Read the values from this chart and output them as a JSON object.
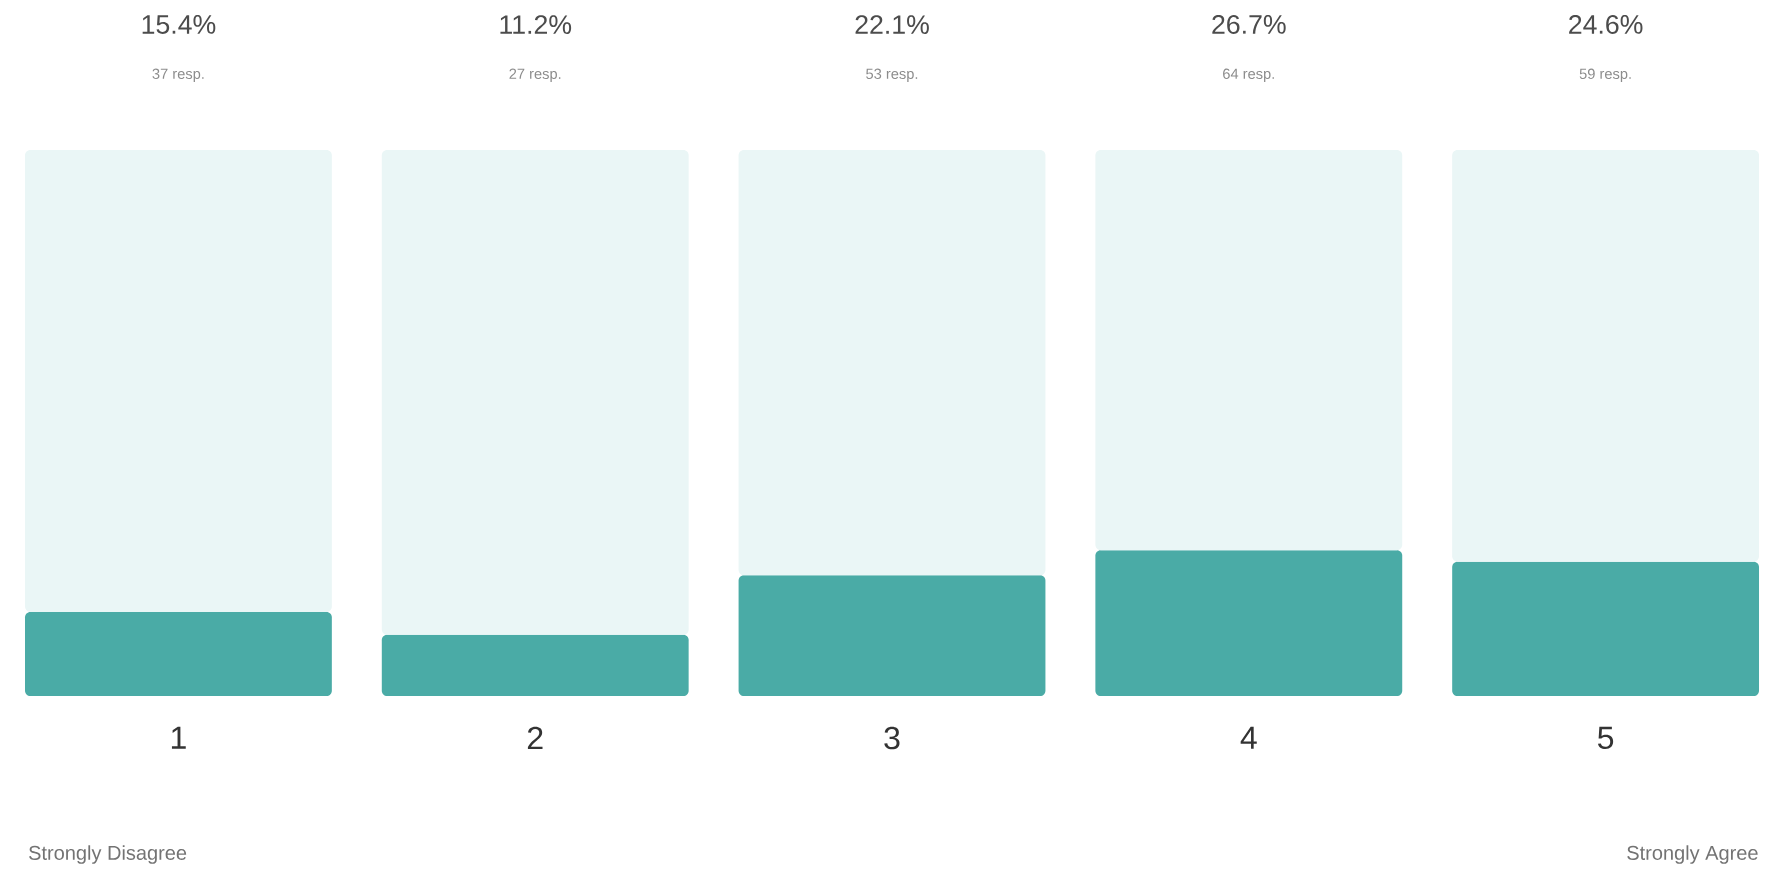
{
  "chart_data": {
    "type": "bar",
    "stacked": true,
    "categories": [
      "1",
      "2",
      "3",
      "4",
      "5"
    ],
    "series": [
      {
        "color": "#4aaba6",
        "values": [
          15.4,
          11.2,
          22.1,
          26.7,
          24.6
        ],
        "value_labels": [
          "15.4%",
          "11.2%",
          "22.1%",
          "26.7%",
          "24.6%"
        ]
      },
      {
        "color": "#eaf6f6",
        "values": [
          84.6,
          88.8,
          77.9,
          73.3,
          75.4
        ]
      }
    ],
    "ylim": [
      0,
      100
    ],
    "tick_labels": "x",
    "annotations": [
      "37 resp.",
      "27 resp.",
      "53 resp.",
      "64 resp.",
      "59 resp.",
      "Strongly Disagree",
      "Strongly Agree"
    ]
  }
}
